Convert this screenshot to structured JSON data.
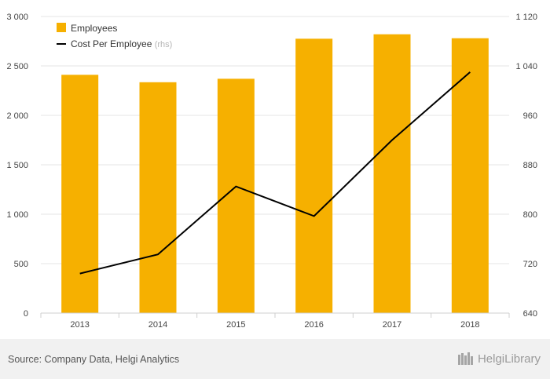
{
  "chart_data": {
    "type": "bar",
    "categories": [
      "2013",
      "2014",
      "2015",
      "2016",
      "2017",
      "2018"
    ],
    "series": [
      {
        "name": "Employees",
        "kind": "bar",
        "axis": "left",
        "color": "#f6b000",
        "values": [
          2410,
          2335,
          2370,
          2775,
          2820,
          2780
        ]
      },
      {
        "name": "Cost Per Employee",
        "kind": "line",
        "axis": "right",
        "color": "#000000",
        "values": [
          704,
          735,
          845,
          797,
          920,
          1030
        ]
      }
    ],
    "legend": [
      {
        "label": "Employees",
        "note": ""
      },
      {
        "label": "Cost Per Employee",
        "note": "(rhs)"
      }
    ],
    "y_left": {
      "ticks": [
        "0",
        "500",
        "1 000",
        "1 500",
        "2 000",
        "2 500",
        "3 000"
      ],
      "ylim": [
        0,
        3000
      ]
    },
    "y_right": {
      "ticks": [
        "640",
        "720",
        "800",
        "880",
        "960",
        "1 040",
        "1 120"
      ],
      "ylim": [
        640,
        1120
      ]
    },
    "grid": true,
    "legend_placement": "top-left"
  },
  "footer": {
    "source": "Source: Company Data, Helgi Analytics",
    "brand": "HelgiLibrary"
  }
}
